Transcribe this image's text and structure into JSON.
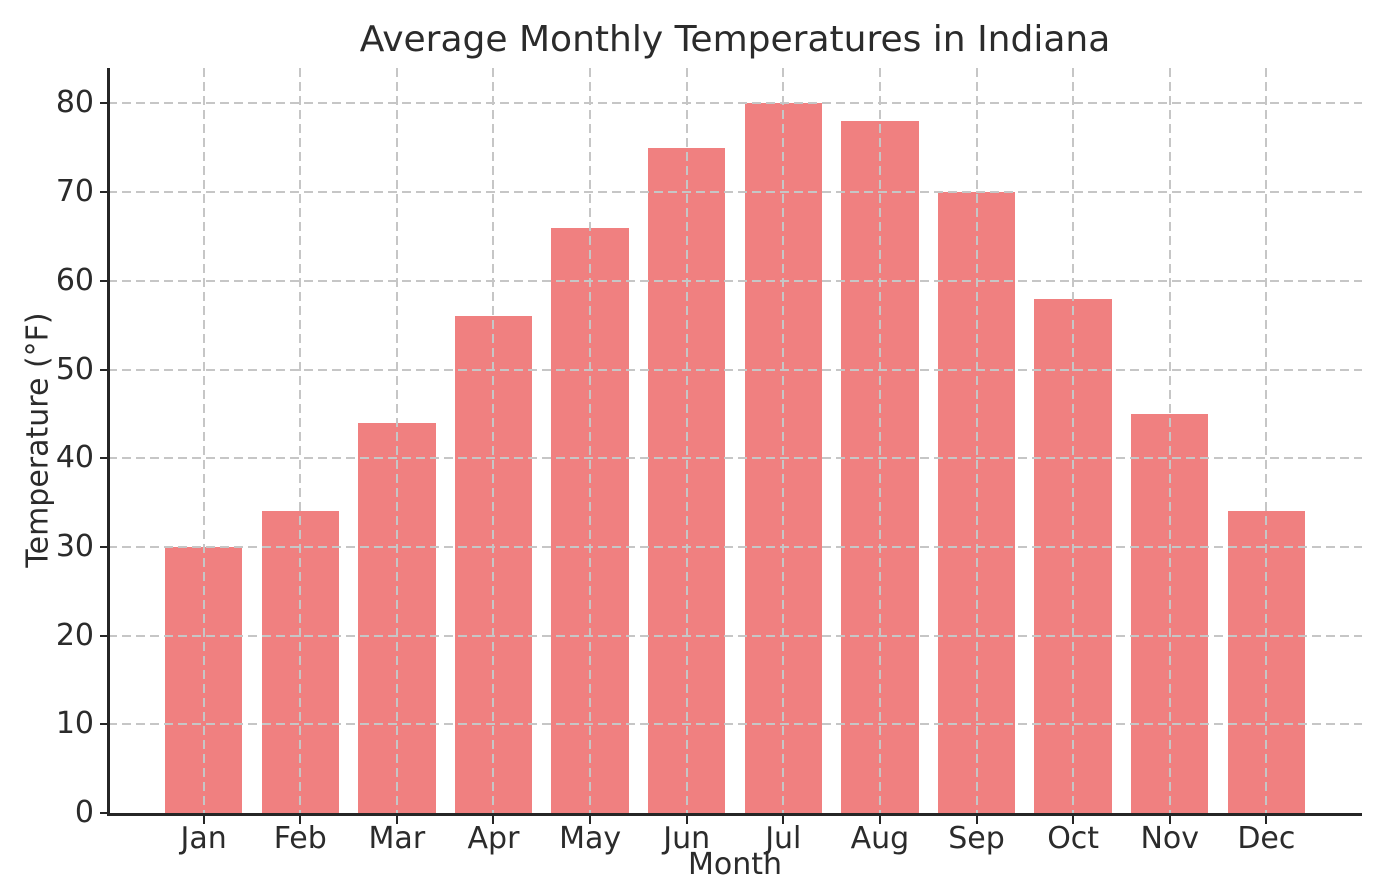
{
  "chart_data": {
    "type": "bar",
    "title": "Average Monthly Temperatures in Indiana",
    "xlabel": "Month",
    "ylabel": "Temperature (°F)",
    "categories": [
      "Jan",
      "Feb",
      "Mar",
      "Apr",
      "May",
      "Jun",
      "Jul",
      "Aug",
      "Sep",
      "Oct",
      "Nov",
      "Dec"
    ],
    "values": [
      30,
      34,
      44,
      56,
      66,
      75,
      80,
      78,
      70,
      58,
      45,
      34
    ],
    "yticks": [
      0,
      10,
      20,
      30,
      40,
      50,
      60,
      70,
      80
    ],
    "ylim": [
      0,
      84
    ],
    "bar_color": "#f08080",
    "grid": "on",
    "grid_style": "dashed",
    "grid_color": "#c6c6c6",
    "axis_color": "#262626",
    "text_color": "#2b2b2b",
    "legend_position": "none"
  }
}
